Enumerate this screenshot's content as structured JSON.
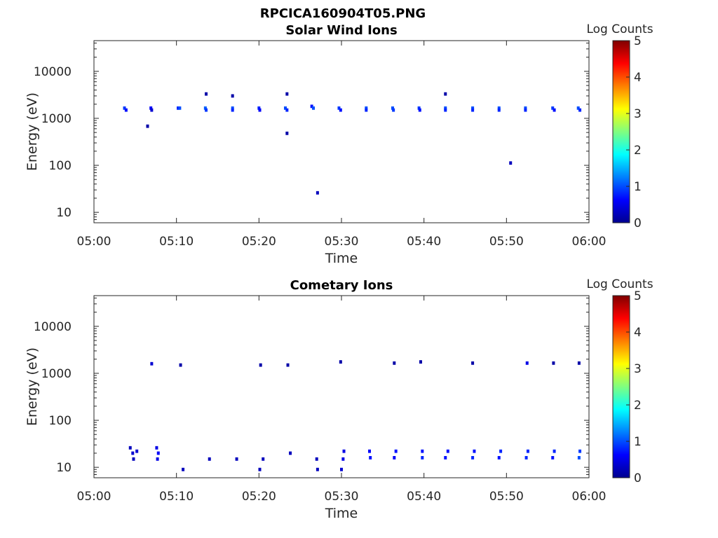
{
  "figure_title": "RPCICA160904T05.PNG",
  "colorbar": {
    "label": "Log Counts",
    "range": [
      0,
      5
    ],
    "ticks": [
      "0",
      "1",
      "2",
      "3",
      "4",
      "5"
    ],
    "colormap": "jet"
  },
  "chart_data": [
    {
      "type": "heatmap",
      "title": "Solar Wind Ions",
      "xlabel": "Time",
      "ylabel": "Energy (eV)",
      "y_scale": "log",
      "xlim": [
        "05:00",
        "06:00"
      ],
      "ylim": [
        6,
        45000
      ],
      "x_ticks": [
        "05:00",
        "05:10",
        "05:20",
        "05:30",
        "05:40",
        "05:50",
        "06:00"
      ],
      "y_ticks": [
        "10",
        "100",
        "1000",
        "10000"
      ],
      "points": [
        {
          "t": 3.7,
          "e": 1650,
          "log_counts": 0.9
        },
        {
          "t": 3.9,
          "e": 1500,
          "log_counts": 0.7
        },
        {
          "t": 6.9,
          "e": 1650,
          "log_counts": 0.6
        },
        {
          "t": 7.0,
          "e": 1500,
          "log_counts": 0.4
        },
        {
          "t": 10.2,
          "e": 1650,
          "log_counts": 0.8
        },
        {
          "t": 10.4,
          "e": 1650,
          "log_counts": 1.0
        },
        {
          "t": 13.5,
          "e": 1650,
          "log_counts": 1.1
        },
        {
          "t": 13.6,
          "e": 1500,
          "log_counts": 0.9
        },
        {
          "t": 16.8,
          "e": 1650,
          "log_counts": 1.0
        },
        {
          "t": 16.8,
          "e": 1500,
          "log_counts": 0.8
        },
        {
          "t": 20.0,
          "e": 1650,
          "log_counts": 0.8
        },
        {
          "t": 20.1,
          "e": 1500,
          "log_counts": 0.6
        },
        {
          "t": 23.2,
          "e": 1650,
          "log_counts": 1.0
        },
        {
          "t": 23.4,
          "e": 1500,
          "log_counts": 0.8
        },
        {
          "t": 26.4,
          "e": 1800,
          "log_counts": 0.7
        },
        {
          "t": 26.6,
          "e": 1650,
          "log_counts": 1.0
        },
        {
          "t": 29.7,
          "e": 1650,
          "log_counts": 0.9
        },
        {
          "t": 29.9,
          "e": 1500,
          "log_counts": 0.7
        },
        {
          "t": 33.0,
          "e": 1650,
          "log_counts": 1.0
        },
        {
          "t": 33.0,
          "e": 1500,
          "log_counts": 0.8
        },
        {
          "t": 36.2,
          "e": 1650,
          "log_counts": 1.0
        },
        {
          "t": 36.3,
          "e": 1500,
          "log_counts": 0.9
        },
        {
          "t": 39.4,
          "e": 1650,
          "log_counts": 0.9
        },
        {
          "t": 39.5,
          "e": 1500,
          "log_counts": 0.7
        },
        {
          "t": 42.6,
          "e": 1650,
          "log_counts": 1.0
        },
        {
          "t": 42.6,
          "e": 1500,
          "log_counts": 0.8
        },
        {
          "t": 45.9,
          "e": 1650,
          "log_counts": 1.0
        },
        {
          "t": 45.9,
          "e": 1500,
          "log_counts": 0.8
        },
        {
          "t": 49.1,
          "e": 1650,
          "log_counts": 1.0
        },
        {
          "t": 49.1,
          "e": 1500,
          "log_counts": 0.8
        },
        {
          "t": 52.3,
          "e": 1650,
          "log_counts": 1.0
        },
        {
          "t": 52.3,
          "e": 1500,
          "log_counts": 0.8
        },
        {
          "t": 55.6,
          "e": 1650,
          "log_counts": 0.9
        },
        {
          "t": 55.8,
          "e": 1500,
          "log_counts": 0.7
        },
        {
          "t": 58.7,
          "e": 1650,
          "log_counts": 1.0
        },
        {
          "t": 58.9,
          "e": 1500,
          "log_counts": 0.8
        },
        {
          "t": 13.6,
          "e": 3300,
          "log_counts": 0.2
        },
        {
          "t": 16.8,
          "e": 3000,
          "log_counts": 0.2
        },
        {
          "t": 23.4,
          "e": 3300,
          "log_counts": 0.2
        },
        {
          "t": 42.6,
          "e": 3300,
          "log_counts": 0.2
        },
        {
          "t": 6.5,
          "e": 680,
          "log_counts": 0.2
        },
        {
          "t": 23.4,
          "e": 480,
          "log_counts": 0.2
        },
        {
          "t": 27.1,
          "e": 26,
          "log_counts": 0.3
        },
        {
          "t": 50.5,
          "e": 112,
          "log_counts": 0.3
        }
      ]
    },
    {
      "type": "heatmap",
      "title": "Cometary Ions",
      "xlabel": "Time",
      "ylabel": "Energy (eV)",
      "y_scale": "log",
      "xlim": [
        "05:00",
        "06:00"
      ],
      "ylim": [
        6,
        45000
      ],
      "x_ticks": [
        "05:00",
        "05:10",
        "05:20",
        "05:30",
        "05:40",
        "05:50",
        "06:00"
      ],
      "y_ticks": [
        "10",
        "100",
        "1000",
        "10000"
      ],
      "points": [
        {
          "t": 7.0,
          "e": 1600,
          "log_counts": 0.4
        },
        {
          "t": 10.5,
          "e": 1500,
          "log_counts": 0.2
        },
        {
          "t": 20.2,
          "e": 1500,
          "log_counts": 0.2
        },
        {
          "t": 23.5,
          "e": 1500,
          "log_counts": 0.2
        },
        {
          "t": 29.9,
          "e": 1750,
          "log_counts": 0.2
        },
        {
          "t": 36.4,
          "e": 1650,
          "log_counts": 0.2
        },
        {
          "t": 39.6,
          "e": 1750,
          "log_counts": 0.2
        },
        {
          "t": 45.9,
          "e": 1650,
          "log_counts": 0.2
        },
        {
          "t": 52.5,
          "e": 1650,
          "log_counts": 0.5
        },
        {
          "t": 55.7,
          "e": 1650,
          "log_counts": 0.2
        },
        {
          "t": 58.8,
          "e": 1650,
          "log_counts": 0.2
        },
        {
          "t": 4.4,
          "e": 26,
          "log_counts": 0.3
        },
        {
          "t": 4.7,
          "e": 20,
          "log_counts": 0.4
        },
        {
          "t": 5.2,
          "e": 22,
          "log_counts": 0.4
        },
        {
          "t": 4.8,
          "e": 15,
          "log_counts": 0.3
        },
        {
          "t": 7.6,
          "e": 26,
          "log_counts": 0.5
        },
        {
          "t": 7.8,
          "e": 20,
          "log_counts": 0.6
        },
        {
          "t": 7.7,
          "e": 15,
          "log_counts": 0.5
        },
        {
          "t": 10.8,
          "e": 9,
          "log_counts": 0.3
        },
        {
          "t": 14.0,
          "e": 15,
          "log_counts": 0.3
        },
        {
          "t": 17.3,
          "e": 15,
          "log_counts": 0.3
        },
        {
          "t": 20.1,
          "e": 9,
          "log_counts": 0.3
        },
        {
          "t": 20.5,
          "e": 15,
          "log_counts": 0.3
        },
        {
          "t": 23.8,
          "e": 20,
          "log_counts": 0.3
        },
        {
          "t": 27.0,
          "e": 15,
          "log_counts": 0.3
        },
        {
          "t": 27.1,
          "e": 9,
          "log_counts": 0.3
        },
        {
          "t": 30.3,
          "e": 22,
          "log_counts": 0.5
        },
        {
          "t": 30.2,
          "e": 15,
          "log_counts": 0.5
        },
        {
          "t": 30.0,
          "e": 9,
          "log_counts": 0.4
        },
        {
          "t": 33.4,
          "e": 22,
          "log_counts": 0.6
        },
        {
          "t": 33.5,
          "e": 16,
          "log_counts": 0.7
        },
        {
          "t": 36.6,
          "e": 22,
          "log_counts": 0.7
        },
        {
          "t": 36.4,
          "e": 16,
          "log_counts": 0.6
        },
        {
          "t": 39.8,
          "e": 22,
          "log_counts": 0.7
        },
        {
          "t": 39.8,
          "e": 16,
          "log_counts": 0.8
        },
        {
          "t": 42.9,
          "e": 22,
          "log_counts": 0.7
        },
        {
          "t": 42.6,
          "e": 16,
          "log_counts": 0.7
        },
        {
          "t": 46.1,
          "e": 22,
          "log_counts": 0.7
        },
        {
          "t": 45.9,
          "e": 16,
          "log_counts": 0.8
        },
        {
          "t": 49.3,
          "e": 22,
          "log_counts": 0.8
        },
        {
          "t": 49.1,
          "e": 16,
          "log_counts": 0.7
        },
        {
          "t": 52.6,
          "e": 22,
          "log_counts": 0.8
        },
        {
          "t": 52.4,
          "e": 16,
          "log_counts": 0.8
        },
        {
          "t": 55.8,
          "e": 22,
          "log_counts": 0.8
        },
        {
          "t": 55.6,
          "e": 16,
          "log_counts": 0.7
        },
        {
          "t": 58.9,
          "e": 22,
          "log_counts": 0.9
        },
        {
          "t": 58.8,
          "e": 16,
          "log_counts": 1.0
        }
      ]
    }
  ]
}
